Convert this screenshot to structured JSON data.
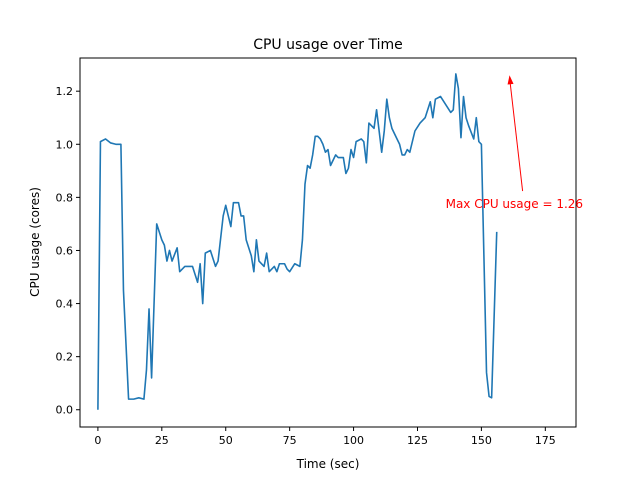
{
  "chart_data": {
    "type": "line",
    "title": "CPU usage over Time",
    "xlabel": "Time (sec)",
    "ylabel": "CPU usage (cores)",
    "xlim": [
      -7,
      187
    ],
    "ylim": [
      -0.065,
      1.325
    ],
    "xticks": [
      0,
      25,
      50,
      75,
      100,
      125,
      150,
      175
    ],
    "yticks": [
      0.0,
      0.2,
      0.4,
      0.6,
      0.8,
      1.0,
      1.2
    ],
    "ytick_labels": [
      "0.0",
      "0.2",
      "0.4",
      "0.6",
      "0.8",
      "1.0",
      "1.2"
    ],
    "grid": false,
    "series_color": "#1f77b4",
    "series": [
      {
        "points": [
          [
            0,
            0.0
          ],
          [
            1,
            1.01
          ],
          [
            3,
            1.02
          ],
          [
            5,
            1.005
          ],
          [
            7,
            1.0
          ],
          [
            9,
            1.0
          ],
          [
            10,
            0.45
          ],
          [
            12,
            0.04
          ],
          [
            14,
            0.04
          ],
          [
            16,
            0.045
          ],
          [
            18,
            0.04
          ],
          [
            19,
            0.15
          ],
          [
            20,
            0.38
          ],
          [
            21,
            0.12
          ],
          [
            23,
            0.7
          ],
          [
            25,
            0.64
          ],
          [
            26,
            0.62
          ],
          [
            27,
            0.56
          ],
          [
            28,
            0.6
          ],
          [
            29,
            0.56
          ],
          [
            31,
            0.61
          ],
          [
            32,
            0.52
          ],
          [
            34,
            0.54
          ],
          [
            37,
            0.54
          ],
          [
            39,
            0.48
          ],
          [
            40,
            0.55
          ],
          [
            41,
            0.4
          ],
          [
            42,
            0.59
          ],
          [
            44,
            0.6
          ],
          [
            46,
            0.54
          ],
          [
            47,
            0.56
          ],
          [
            49,
            0.73
          ],
          [
            50,
            0.77
          ],
          [
            52,
            0.69
          ],
          [
            53,
            0.78
          ],
          [
            55,
            0.78
          ],
          [
            56,
            0.73
          ],
          [
            57,
            0.73
          ],
          [
            58,
            0.64
          ],
          [
            60,
            0.58
          ],
          [
            61,
            0.52
          ],
          [
            62,
            0.64
          ],
          [
            63,
            0.56
          ],
          [
            65,
            0.54
          ],
          [
            66,
            0.59
          ],
          [
            67,
            0.52
          ],
          [
            69,
            0.54
          ],
          [
            70,
            0.52
          ],
          [
            71,
            0.55
          ],
          [
            73,
            0.55
          ],
          [
            74,
            0.53
          ],
          [
            75,
            0.52
          ],
          [
            77,
            0.55
          ],
          [
            79,
            0.54
          ],
          [
            80,
            0.64
          ],
          [
            81,
            0.85
          ],
          [
            82,
            0.92
          ],
          [
            83,
            0.91
          ],
          [
            84,
            0.96
          ],
          [
            85,
            1.03
          ],
          [
            86,
            1.03
          ],
          [
            87,
            1.02
          ],
          [
            88,
            1.0
          ],
          [
            89,
            0.97
          ],
          [
            90,
            0.98
          ],
          [
            91,
            0.92
          ],
          [
            93,
            0.96
          ],
          [
            94,
            0.95
          ],
          [
            95,
            0.95
          ],
          [
            96,
            0.95
          ],
          [
            97,
            0.89
          ],
          [
            98,
            0.91
          ],
          [
            99,
            0.98
          ],
          [
            100,
            0.95
          ],
          [
            101,
            1.01
          ],
          [
            103,
            1.02
          ],
          [
            104,
            1.01
          ],
          [
            105,
            0.93
          ],
          [
            106,
            1.08
          ],
          [
            107,
            1.07
          ],
          [
            108,
            1.06
          ],
          [
            109,
            1.13
          ],
          [
            111,
            0.97
          ],
          [
            112,
            1.05
          ],
          [
            113,
            1.17
          ],
          [
            114,
            1.1
          ],
          [
            115,
            1.06
          ],
          [
            117,
            1.02
          ],
          [
            118,
            1.0
          ],
          [
            119,
            0.96
          ],
          [
            120,
            0.96
          ],
          [
            121,
            0.98
          ],
          [
            122,
            0.97
          ],
          [
            124,
            1.05
          ],
          [
            126,
            1.08
          ],
          [
            128,
            1.1
          ],
          [
            130,
            1.16
          ],
          [
            131,
            1.1
          ],
          [
            132,
            1.17
          ],
          [
            134,
            1.18
          ],
          [
            136,
            1.15
          ],
          [
            138,
            1.12
          ],
          [
            139,
            1.13
          ],
          [
            140,
            1.265
          ],
          [
            141,
            1.21
          ],
          [
            142,
            1.025
          ],
          [
            143,
            1.18
          ],
          [
            144,
            1.1
          ],
          [
            145,
            1.07
          ],
          [
            147,
            1.02
          ],
          [
            148,
            1.1
          ],
          [
            149,
            1.01
          ],
          [
            150,
            1.0
          ],
          [
            152,
            0.14
          ],
          [
            153,
            0.05
          ],
          [
            154,
            0.045
          ],
          [
            156,
            0.67
          ]
        ]
      }
    ],
    "annotation": {
      "text": "Max CPU usage = 1.26",
      "text_position": [
        136,
        0.775
      ],
      "arrow_target": [
        161,
        1.26
      ],
      "color": "#ff0000"
    }
  }
}
